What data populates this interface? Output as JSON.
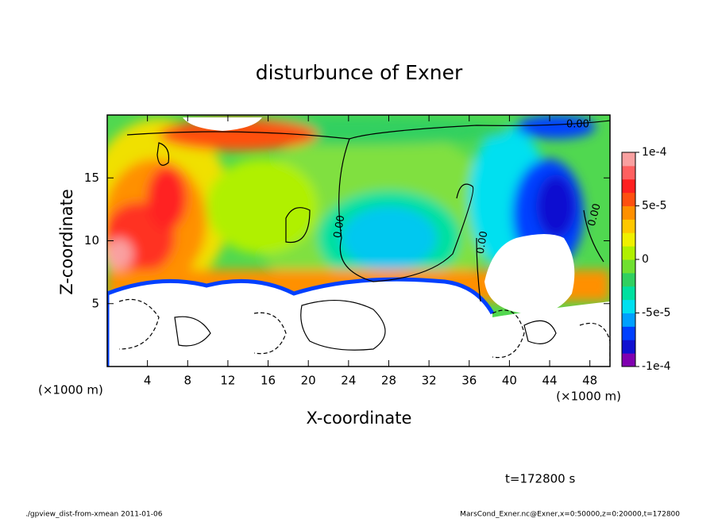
{
  "chart_data": {
    "type": "contour",
    "title": "disturbunce of Exner",
    "xlabel": "X-coordinate",
    "ylabel": "Z-coordinate",
    "x_units": "(×1000 m)",
    "y_units": "(×1000 m)",
    "xlim": [
      0,
      50
    ],
    "xticks": [
      4,
      8,
      12,
      16,
      20,
      24,
      28,
      32,
      36,
      40,
      44,
      48
    ],
    "ylim": [
      0,
      20
    ],
    "yticks": [
      5,
      10,
      15
    ],
    "clim": [
      -0.0001,
      0.0001
    ],
    "cticks": [
      {
        "value": 0.0001,
        "label": "1e-4"
      },
      {
        "value": 5e-05,
        "label": "5e-5"
      },
      0,
      {
        "value": -5e-05,
        "label": "-5e-5"
      },
      {
        "value": -0.0001,
        "label": "-1e-4"
      }
    ],
    "colors": [
      "#8000b0",
      "#1010d0",
      "#0040ff",
      "#00a0ff",
      "#00e0f0",
      "#00e0a0",
      "#30d060",
      "#70e030",
      "#b0f000",
      "#f0f000",
      "#ffc800",
      "#ff9000",
      "#ff5010",
      "#ff2020",
      "#ff6060",
      "#f9a0a0"
    ],
    "contour_labels": [
      "0.00",
      "0.00",
      "0.00",
      "0.00"
    ],
    "time_label": "t=172800 s",
    "footer_left": "./gpview_dist-from-xmean  2011-01-06",
    "footer_right": "MarsCond_Exner.nc@Exner,x=0:50000,z=0:20000,t=172800"
  }
}
